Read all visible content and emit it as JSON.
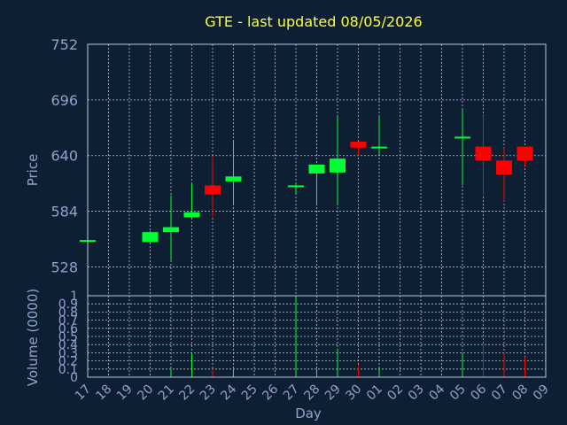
{
  "title": "GTE - last updated 08/05/2026",
  "colors": {
    "background": "#0f1f33",
    "up": "#00ff33",
    "down": "#ff0000",
    "text": "#8aa6cc",
    "title": "#ffff33"
  },
  "chart_data": [
    {
      "type": "candlestick",
      "ylabel": "Price",
      "ylim": [
        499,
        752
      ],
      "y_ticks": [
        528,
        584,
        640,
        696,
        752
      ],
      "grid": true,
      "x_ticks": [
        "17",
        "18",
        "19",
        "20",
        "21",
        "22",
        "23",
        "24",
        "25",
        "26",
        "27",
        "28",
        "29",
        "30",
        "01",
        "02",
        "03",
        "04",
        "05",
        "06",
        "07",
        "08",
        "09"
      ],
      "candles": [
        {
          "day": "17",
          "open": 554,
          "high": 554,
          "low": 554,
          "close": 555
        },
        {
          "day": "20",
          "open": 553,
          "high": 564,
          "low": 553,
          "close": 563
        },
        {
          "day": "21",
          "open": 563,
          "high": 600,
          "low": 535,
          "close": 568
        },
        {
          "day": "22",
          "open": 578,
          "high": 612,
          "low": 577,
          "close": 583
        },
        {
          "day": "23",
          "open": 610,
          "high": 640,
          "low": 578,
          "close": 601
        },
        {
          "day": "24",
          "open": 614,
          "high": 654,
          "low": 590,
          "close": 619
        },
        {
          "day": "27",
          "open": 609,
          "high": 611,
          "low": 601,
          "close": 610
        },
        {
          "day": "28",
          "open": 622,
          "high": 630,
          "low": 590,
          "close": 631
        },
        {
          "day": "29",
          "open": 623,
          "high": 680,
          "low": 590,
          "close": 637
        },
        {
          "day": "30",
          "open": 654,
          "high": 654,
          "low": 640,
          "close": 648
        },
        {
          "day": "01",
          "open": 648,
          "high": 680,
          "low": 641,
          "close": 649
        },
        {
          "day": "05",
          "open": 658,
          "high": 686,
          "low": 610,
          "close": 659
        },
        {
          "day": "06",
          "open": 649,
          "high": 680,
          "low": 600,
          "close": 635
        },
        {
          "day": "07",
          "open": 635,
          "high": 648,
          "low": 594,
          "close": 621
        },
        {
          "day": "08",
          "open": 649,
          "high": 649,
          "low": 630,
          "close": 635
        }
      ]
    },
    {
      "type": "bar",
      "ylabel": "Volume (0000)",
      "xlabel": "Day",
      "ylim": [
        0,
        1
      ],
      "y_ticks": [
        "0",
        "0.1",
        "0.2",
        "0.3",
        "0.4",
        "0.5",
        "0.6",
        "0.7",
        "0.8",
        "0.9",
        "1"
      ],
      "categories": [
        "17",
        "20",
        "21",
        "22",
        "23",
        "24",
        "27",
        "28",
        "29",
        "30",
        "01",
        "05",
        "06",
        "07",
        "08"
      ],
      "values": [
        0.0,
        0.0,
        0.1,
        0.3,
        0.1,
        0.1,
        1.0,
        0.1,
        0.35,
        0.15,
        0.12,
        0.3,
        0.4,
        0.3,
        0.25
      ],
      "direction": [
        "up",
        "up",
        "up",
        "up",
        "down",
        "up",
        "up",
        "up",
        "up",
        "down",
        "up",
        "up",
        "down",
        "down",
        "down"
      ]
    }
  ]
}
